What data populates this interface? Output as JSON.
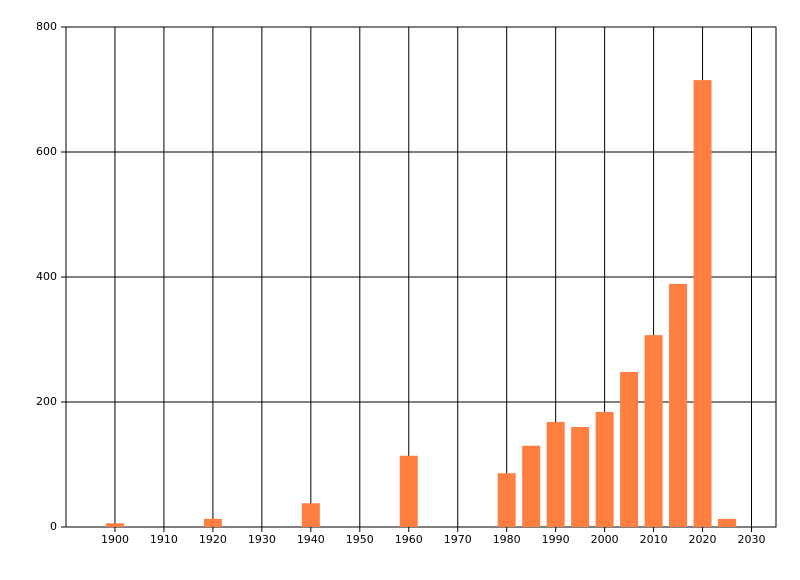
{
  "chart_data": {
    "type": "bar",
    "x": [
      1900,
      1920,
      1940,
      1960,
      1980,
      1985,
      1990,
      1995,
      2000,
      2005,
      2010,
      2015,
      2020,
      2025
    ],
    "values": [
      6,
      13,
      38,
      114,
      86,
      130,
      168,
      160,
      184,
      248,
      307,
      389,
      715,
      13
    ],
    "color": "#ff7f40",
    "xlim": [
      1890,
      2035
    ],
    "xticks": [
      1900,
      1910,
      1920,
      1930,
      1940,
      1950,
      1960,
      1970,
      1980,
      1990,
      2000,
      2010,
      2020,
      2030
    ],
    "ylim": [
      0,
      800
    ],
    "yticks": [
      0,
      200,
      400,
      600,
      800
    ],
    "grid": true
  }
}
